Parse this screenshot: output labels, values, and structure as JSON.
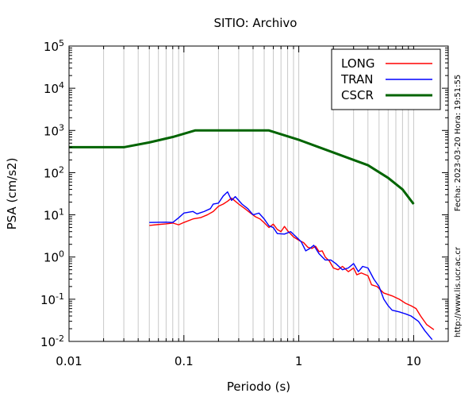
{
  "chart_data": {
    "type": "line",
    "title": "SITIO: Archivo",
    "xlabel": "Periodo (s)",
    "ylabel": "PSA (cm/s2)",
    "x_scale": "log",
    "y_scale": "log",
    "xlim": [
      0.01,
      20
    ],
    "ylim": [
      0.01,
      100000
    ],
    "x_ticks": [
      {
        "value": 0.01,
        "label": "0.01"
      },
      {
        "value": 0.1,
        "label": "0.1"
      },
      {
        "value": 1,
        "label": "1"
      },
      {
        "value": 10,
        "label": "10"
      }
    ],
    "y_ticks": [
      {
        "value": 0.01,
        "base": "10",
        "exp": "-2"
      },
      {
        "value": 0.1,
        "base": "10",
        "exp": "-1"
      },
      {
        "value": 1,
        "base": "10",
        "exp": "0"
      },
      {
        "value": 10,
        "base": "10",
        "exp": "1"
      },
      {
        "value": 100,
        "base": "10",
        "exp": "2"
      },
      {
        "value": 1000,
        "base": "10",
        "exp": "3"
      },
      {
        "value": 10000,
        "base": "10",
        "exp": "4"
      },
      {
        "value": 100000,
        "base": "10",
        "exp": "5"
      }
    ],
    "grid": "vertical",
    "legend_position": "top-right",
    "series": [
      {
        "name": "LONG",
        "color": "#ff0000",
        "points": [
          [
            0.05,
            5.6
          ],
          [
            0.06,
            5.9
          ],
          [
            0.07,
            6.1
          ],
          [
            0.08,
            6.4
          ],
          [
            0.09,
            5.8
          ],
          [
            0.1,
            6.6
          ],
          [
            0.12,
            8.0
          ],
          [
            0.14,
            8.6
          ],
          [
            0.16,
            10.0
          ],
          [
            0.18,
            12.0
          ],
          [
            0.2,
            16.0
          ],
          [
            0.22,
            18.0
          ],
          [
            0.24,
            21.0
          ],
          [
            0.26,
            25.0
          ],
          [
            0.28,
            21.0
          ],
          [
            0.3,
            18.0
          ],
          [
            0.34,
            14.0
          ],
          [
            0.38,
            11.0
          ],
          [
            0.42,
            9.0
          ],
          [
            0.46,
            8.0
          ],
          [
            0.5,
            6.5
          ],
          [
            0.55,
            5.0
          ],
          [
            0.6,
            6.0
          ],
          [
            0.65,
            4.5
          ],
          [
            0.7,
            4.0
          ],
          [
            0.75,
            5.3
          ],
          [
            0.8,
            4.2
          ],
          [
            0.9,
            3.0
          ],
          [
            1.0,
            2.5
          ],
          [
            1.1,
            2.2
          ],
          [
            1.2,
            1.7
          ],
          [
            1.3,
            1.6
          ],
          [
            1.4,
            1.8
          ],
          [
            1.5,
            1.35
          ],
          [
            1.6,
            1.4
          ],
          [
            1.7,
            1.0
          ],
          [
            1.85,
            0.8
          ],
          [
            2.0,
            0.55
          ],
          [
            2.2,
            0.5
          ],
          [
            2.4,
            0.6
          ],
          [
            2.7,
            0.45
          ],
          [
            3.0,
            0.55
          ],
          [
            3.2,
            0.38
          ],
          [
            3.5,
            0.42
          ],
          [
            4.0,
            0.36
          ],
          [
            4.3,
            0.22
          ],
          [
            4.8,
            0.2
          ],
          [
            5.5,
            0.14
          ],
          [
            6.5,
            0.12
          ],
          [
            7.5,
            0.1
          ],
          [
            8.5,
            0.08
          ],
          [
            9.5,
            0.07
          ],
          [
            10.5,
            0.06
          ],
          [
            11.5,
            0.04
          ],
          [
            13.0,
            0.025
          ],
          [
            15.0,
            0.019
          ]
        ]
      },
      {
        "name": "TRAN",
        "color": "#0000ff",
        "points": [
          [
            0.05,
            6.6
          ],
          [
            0.07,
            6.7
          ],
          [
            0.08,
            6.6
          ],
          [
            0.09,
            8.5
          ],
          [
            0.1,
            11.0
          ],
          [
            0.12,
            12.0
          ],
          [
            0.13,
            10.5
          ],
          [
            0.15,
            12.0
          ],
          [
            0.17,
            14.0
          ],
          [
            0.18,
            18.0
          ],
          [
            0.2,
            19.0
          ],
          [
            0.22,
            28.0
          ],
          [
            0.24,
            35.0
          ],
          [
            0.26,
            22.0
          ],
          [
            0.28,
            27.0
          ],
          [
            0.3,
            22.0
          ],
          [
            0.32,
            18.0
          ],
          [
            0.36,
            14.0
          ],
          [
            0.4,
            10.0
          ],
          [
            0.45,
            11.0
          ],
          [
            0.5,
            8.0
          ],
          [
            0.55,
            5.5
          ],
          [
            0.6,
            5.0
          ],
          [
            0.65,
            3.6
          ],
          [
            0.75,
            3.5
          ],
          [
            0.85,
            4.0
          ],
          [
            0.95,
            3.0
          ],
          [
            1.05,
            2.3
          ],
          [
            1.15,
            1.4
          ],
          [
            1.25,
            1.6
          ],
          [
            1.35,
            1.9
          ],
          [
            1.5,
            1.2
          ],
          [
            1.7,
            0.85
          ],
          [
            1.9,
            0.85
          ],
          [
            2.1,
            0.7
          ],
          [
            2.4,
            0.5
          ],
          [
            2.7,
            0.55
          ],
          [
            3.0,
            0.7
          ],
          [
            3.3,
            0.45
          ],
          [
            3.6,
            0.6
          ],
          [
            4.0,
            0.55
          ],
          [
            4.5,
            0.3
          ],
          [
            5.0,
            0.2
          ],
          [
            5.5,
            0.1
          ],
          [
            6.0,
            0.07
          ],
          [
            6.5,
            0.055
          ],
          [
            7.5,
            0.05
          ],
          [
            8.5,
            0.045
          ],
          [
            9.5,
            0.04
          ],
          [
            11.0,
            0.03
          ],
          [
            12.5,
            0.018
          ],
          [
            14.5,
            0.011
          ]
        ]
      },
      {
        "name": "CSCR",
        "color": "#006400",
        "points": [
          [
            0.01,
            400
          ],
          [
            0.03,
            400
          ],
          [
            0.05,
            520
          ],
          [
            0.08,
            700
          ],
          [
            0.125,
            1000
          ],
          [
            0.55,
            1000
          ],
          [
            1.0,
            600
          ],
          [
            1.5,
            400
          ],
          [
            2.0,
            300
          ],
          [
            3.0,
            200
          ],
          [
            4.0,
            150
          ],
          [
            6.0,
            75
          ],
          [
            8.0,
            40
          ],
          [
            10.0,
            18
          ]
        ]
      }
    ]
  },
  "side_text": {
    "timestamp": "Fecha: 2023-03-20  Hora: 19:51:55",
    "url": "http://www.lis.ucr.ac.cr"
  }
}
